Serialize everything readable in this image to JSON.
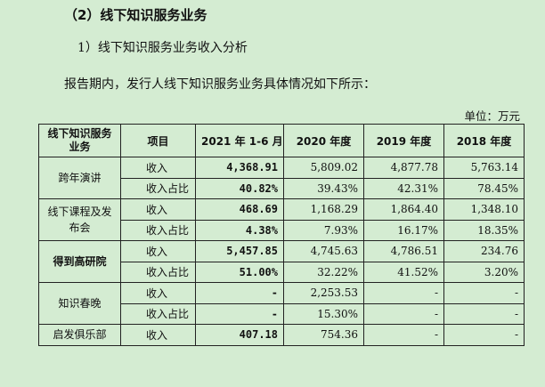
{
  "heading": "（2）线下知识服务业务",
  "subheading": "1）线下知识服务业务收入分析",
  "paragraph": "报告期内，发行人线下知识服务业务具体情况如下所示：",
  "unit": "单位：万元",
  "table": {
    "headers": [
      "线下知识服务业务",
      "项目",
      "2021 年 1-6 月",
      "2020 年度",
      "2019 年度",
      "2018 年度"
    ],
    "rows": [
      {
        "group": "跨年演讲",
        "item": "收入",
        "v2021": "4,368.91",
        "v2020": "5,809.02",
        "v2019": "4,877.78",
        "v2018": "5,763.14"
      },
      {
        "item": "收入占比",
        "v2021": "40.82%",
        "v2020": "39.43%",
        "v2019": "42.31%",
        "v2018": "78.45%"
      },
      {
        "group": "线下课程及发布会",
        "item": "收入",
        "v2021": "468.69",
        "v2020": "1,168.29",
        "v2019": "1,864.40",
        "v2018": "1,348.10"
      },
      {
        "item": "收入占比",
        "v2021": "4.38%",
        "v2020": "7.93%",
        "v2019": "16.17%",
        "v2018": "18.35%"
      },
      {
        "group": "得到高研院",
        "item": "收入",
        "v2021": "5,457.85",
        "v2020": "4,745.63",
        "v2019": "4,786.51",
        "v2018": "234.76"
      },
      {
        "item": "收入占比",
        "v2021": "51.00%",
        "v2020": "32.22%",
        "v2019": "41.52%",
        "v2018": "3.20%"
      },
      {
        "group": "知识春晚",
        "item": "收入",
        "v2021": "-",
        "v2020": "2,253.53",
        "v2019": "-",
        "v2018": "-"
      },
      {
        "item": "收入占比",
        "v2021": "-",
        "v2020": "15.30%",
        "v2019": "-",
        "v2018": "-"
      },
      {
        "group": "启发俱乐部",
        "item": "收入",
        "v2021": "407.18",
        "v2020": "754.36",
        "v2019": "-",
        "v2018": "-"
      }
    ]
  }
}
